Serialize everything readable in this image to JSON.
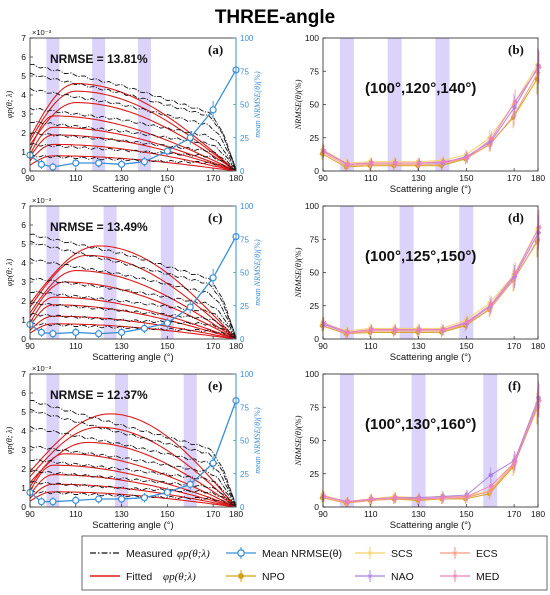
{
  "figure_title": "THREE-angle",
  "x_axis_label": "Scattering angle (°)",
  "left_y_label": "φp(θ; λ)",
  "left_y_multiplier": "×10⁻³",
  "right_y_label": "mean NRMSE(θ)(%)",
  "nrmse_y_label": "NRMSE(θ)(%)",
  "colors": {
    "measured": "#111111",
    "fitted": "#dd1c1c",
    "mean_nrmse": "#3b8fd6",
    "band": "#dcd3fb",
    "SCS": "#f3d166",
    "NPO": "#d4a017",
    "NAO": "#a97fe0",
    "ECS": "#f49a7c",
    "MED": "#ef7fb8"
  },
  "legend": {
    "measured": "Measured",
    "measured_sym": "φp(θ;λ)",
    "fitted": "Fitted",
    "fitted_sym": "φp(θ;λ)",
    "mean": "Mean NRMSE(θ)",
    "SCS": "SCS",
    "NPO": "NPO",
    "NAO": "NAO",
    "ECS": "ECS",
    "MED": "MED"
  },
  "chart_data": [
    {
      "panel": "(a)",
      "type": "line",
      "annotation": "NRMSE = 13.81%",
      "x_ticks": [
        90,
        110,
        130,
        150,
        170,
        180
      ],
      "xlim": [
        90,
        180
      ],
      "ylim_left": [
        0,
        7
      ],
      "ylim_right": [
        0,
        100
      ],
      "left_ticks": [
        0,
        1,
        2,
        3,
        4,
        5,
        6,
        7
      ],
      "right_ticks": [
        0,
        25,
        50,
        75,
        100
      ],
      "highlight_angles": [
        100,
        120,
        140
      ],
      "fitted_curves": [
        {
          "peak_x": 110,
          "peak_y": 4.6
        },
        {
          "peak_x": 110,
          "peak_y": 4.2
        },
        {
          "peak_x": 110,
          "peak_y": 3.6
        },
        {
          "peak_x": 100,
          "peak_y": 2.9
        },
        {
          "peak_x": 100,
          "peak_y": 2.3
        },
        {
          "peak_x": 100,
          "peak_y": 1.9
        },
        {
          "peak_x": 100,
          "peak_y": 1.4
        },
        {
          "peak_x": 100,
          "peak_y": 0.8
        }
      ],
      "measured_curves": [
        {
          "start": 5.6,
          "mid": 4.5,
          "late": 3.2
        },
        {
          "start": 5.1,
          "mid": 4.1,
          "late": 3.0
        },
        {
          "start": 4.3,
          "mid": 3.5,
          "late": 2.5
        },
        {
          "start": 3.3,
          "mid": 2.7,
          "late": 1.9
        },
        {
          "start": 2.6,
          "mid": 2.1,
          "late": 1.5
        },
        {
          "start": 2.0,
          "mid": 1.6,
          "late": 1.1
        },
        {
          "start": 1.4,
          "mid": 1.1,
          "late": 0.8
        },
        {
          "start": 0.8,
          "mid": 0.6,
          "late": 0.45
        }
      ],
      "mean_nrmse": {
        "x": [
          90,
          95,
          100,
          110,
          120,
          130,
          140,
          150,
          160,
          170,
          180
        ],
        "y": [
          12,
          5,
          3,
          6,
          6,
          5,
          7,
          15,
          25,
          46,
          76
        ]
      },
      "series_x": [
        90,
        100,
        110,
        120,
        130,
        140,
        150,
        160,
        170,
        180
      ],
      "series": [
        {
          "name": "SCS",
          "values": [
            16,
            6,
            7,
            7,
            7,
            8,
            12,
            25,
            50,
            80
          ]
        },
        {
          "name": "NPO",
          "values": [
            13,
            3,
            4,
            4,
            4,
            4,
            9,
            20,
            40,
            69
          ]
        },
        {
          "name": "NAO",
          "values": [
            15,
            5,
            6,
            6,
            6,
            6,
            11,
            22,
            48,
            79
          ]
        },
        {
          "name": "ECS",
          "values": [
            14,
            4,
            5,
            5,
            5,
            5,
            10,
            20,
            42,
            74
          ]
        },
        {
          "name": "MED",
          "values": [
            15,
            5,
            6,
            6,
            6,
            7,
            10,
            24,
            52,
            78
          ]
        }
      ],
      "nrmse_panel_label": "(b)",
      "nrmse_annotation": "(100°,120°,140°)"
    },
    {
      "panel": "(c)",
      "type": "line",
      "annotation": "NRMSE = 13.49%",
      "x_ticks": [
        90,
        110,
        130,
        150,
        170,
        180
      ],
      "xlim": [
        90,
        180
      ],
      "ylim_left": [
        0,
        7
      ],
      "ylim_right": [
        0,
        100
      ],
      "left_ticks": [
        0,
        1,
        2,
        3,
        4,
        5,
        6,
        7
      ],
      "right_ticks": [
        0,
        25,
        50,
        75,
        100
      ],
      "highlight_angles": [
        100,
        125,
        150
      ],
      "fitted_curves": [
        {
          "peak_x": 120,
          "peak_y": 4.9
        },
        {
          "peak_x": 115,
          "peak_y": 4.4
        },
        {
          "peak_x": 110,
          "peak_y": 3.6
        },
        {
          "peak_x": 105,
          "peak_y": 3.0
        },
        {
          "peak_x": 100,
          "peak_y": 2.2
        },
        {
          "peak_x": 100,
          "peak_y": 1.8
        },
        {
          "peak_x": 100,
          "peak_y": 1.2
        },
        {
          "peak_x": 100,
          "peak_y": 0.8
        }
      ],
      "measured_curves": [
        {
          "start": 5.5,
          "mid": 4.5,
          "late": 3.3
        },
        {
          "start": 5.1,
          "mid": 4.0,
          "late": 3.0
        },
        {
          "start": 4.2,
          "mid": 3.4,
          "late": 2.5
        },
        {
          "start": 3.2,
          "mid": 2.6,
          "late": 1.9
        },
        {
          "start": 2.5,
          "mid": 2.0,
          "late": 1.5
        },
        {
          "start": 1.9,
          "mid": 1.5,
          "late": 1.1
        },
        {
          "start": 1.3,
          "mid": 1.0,
          "late": 0.8
        },
        {
          "start": 0.8,
          "mid": 0.6,
          "late": 0.45
        }
      ],
      "mean_nrmse": {
        "x": [
          90,
          95,
          100,
          110,
          120,
          130,
          140,
          150,
          160,
          170,
          180
        ],
        "y": [
          11,
          5,
          4,
          5,
          4,
          5,
          8,
          12,
          24,
          46,
          77
        ]
      },
      "series_x": [
        90,
        100,
        110,
        120,
        130,
        140,
        150,
        160,
        170,
        180
      ],
      "series": [
        {
          "name": "SCS",
          "values": [
            12,
            6,
            8,
            8,
            8,
            8,
            14,
            27,
            48,
            82
          ]
        },
        {
          "name": "NPO",
          "values": [
            10,
            4,
            5,
            5,
            5,
            5,
            10,
            22,
            44,
            73
          ]
        },
        {
          "name": "NAO",
          "values": [
            11,
            5,
            7,
            7,
            7,
            7,
            12,
            25,
            47,
            80
          ]
        },
        {
          "name": "ECS",
          "values": [
            10,
            4,
            6,
            6,
            6,
            6,
            11,
            23,
            45,
            75
          ]
        },
        {
          "name": "MED",
          "values": [
            12,
            5,
            7,
            7,
            7,
            7,
            13,
            26,
            49,
            84
          ]
        }
      ],
      "nrmse_panel_label": "(d)",
      "nrmse_annotation": "(100°,125°,150°)"
    },
    {
      "panel": "(e)",
      "type": "line",
      "annotation": "NRMSE = 12.37%",
      "x_ticks": [
        90,
        110,
        130,
        150,
        170,
        180
      ],
      "xlim": [
        90,
        180
      ],
      "ylim_left": [
        0,
        7
      ],
      "ylim_right": [
        0,
        100
      ],
      "left_ticks": [
        0,
        1,
        2,
        3,
        4,
        5,
        6,
        7
      ],
      "right_ticks": [
        0,
        25,
        50,
        75,
        100
      ],
      "highlight_angles": [
        100,
        130,
        160
      ],
      "fitted_curves": [
        {
          "peak_x": 125,
          "peak_y": 4.9
        },
        {
          "peak_x": 120,
          "peak_y": 4.2
        },
        {
          "peak_x": 115,
          "peak_y": 3.4
        },
        {
          "peak_x": 105,
          "peak_y": 2.8
        },
        {
          "peak_x": 100,
          "peak_y": 2.2
        },
        {
          "peak_x": 100,
          "peak_y": 1.7
        },
        {
          "peak_x": 100,
          "peak_y": 1.2
        },
        {
          "peak_x": 100,
          "peak_y": 0.8
        }
      ],
      "measured_curves": [
        {
          "start": 5.6,
          "mid": 4.3,
          "late": 3.2
        },
        {
          "start": 5.1,
          "mid": 3.9,
          "late": 2.9
        },
        {
          "start": 4.2,
          "mid": 3.3,
          "late": 2.4
        },
        {
          "start": 3.2,
          "mid": 2.6,
          "late": 1.9
        },
        {
          "start": 2.5,
          "mid": 2.0,
          "late": 1.5
        },
        {
          "start": 1.9,
          "mid": 1.5,
          "late": 1.1
        },
        {
          "start": 1.3,
          "mid": 1.0,
          "late": 0.8
        },
        {
          "start": 0.8,
          "mid": 0.6,
          "late": 0.45
        }
      ],
      "mean_nrmse": {
        "x": [
          90,
          95,
          100,
          110,
          120,
          130,
          140,
          150,
          160,
          170,
          180
        ],
        "y": [
          11,
          4,
          4,
          5,
          6,
          6,
          7,
          11,
          17,
          33,
          80
        ]
      },
      "series_x": [
        90,
        100,
        110,
        120,
        130,
        140,
        150,
        160,
        170,
        180
      ],
      "series": [
        {
          "name": "SCS",
          "values": [
            9,
            4,
            6,
            8,
            7,
            8,
            8,
            12,
            33,
            78
          ]
        },
        {
          "name": "NPO",
          "values": [
            7,
            3,
            5,
            6,
            5,
            6,
            6,
            10,
            30,
            74
          ]
        },
        {
          "name": "NAO",
          "values": [
            8,
            4,
            6,
            7,
            7,
            8,
            9,
            24,
            35,
            82
          ]
        },
        {
          "name": "ECS",
          "values": [
            7,
            3,
            5,
            6,
            6,
            6,
            7,
            12,
            32,
            76
          ]
        },
        {
          "name": "MED",
          "values": [
            8,
            4,
            6,
            7,
            6,
            7,
            8,
            16,
            34,
            80
          ]
        }
      ],
      "nrmse_panel_label": "(f)",
      "nrmse_annotation": "(100°,130°,160°)"
    }
  ]
}
